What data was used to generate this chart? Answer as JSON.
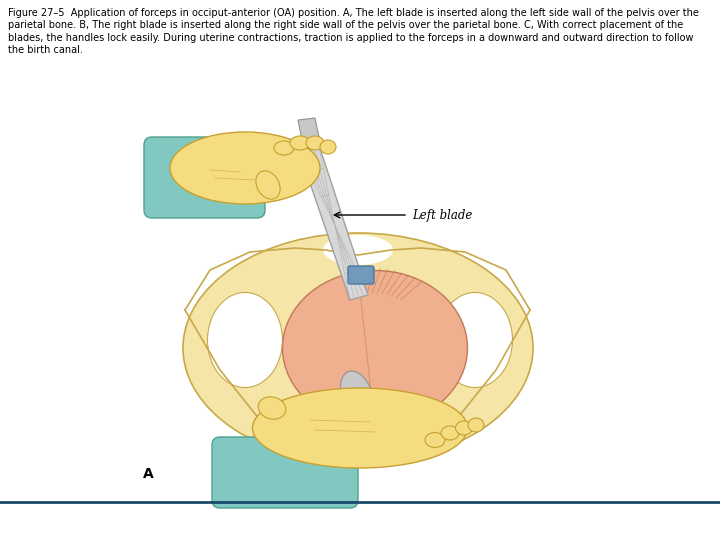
{
  "title_text": "Figure 27–5  Application of forceps in occiput-anterior (OA) position. A, The left blade is inserted along the left side wall of the pelvis over the\nparietal bone. B, The right blade is inserted along the right side wall of the pelvis over the parietal bone. C, With correct placement of the\nblades, the handles lock easily. During uterine contractions, traction is applied to the forceps in a downward and outward direction to follow\nthe birth canal.",
  "label_text": "Left blade",
  "sublabel": "A",
  "background_color": "#ffffff",
  "title_fontsize": 7.0,
  "label_fontsize": 8.5,
  "sublabel_fontsize": 10,
  "separator_color": "#1a4a6b",
  "fig_width": 7.2,
  "fig_height": 5.4,
  "dpi": 100,
  "pelvis_color": "#F5E6A8",
  "pelvis_edge": "#C8A848",
  "head_color": "#F0B090",
  "head_edge": "#C07858",
  "hand_color": "#F5DC80",
  "hand_edge": "#C8A030",
  "cuff_color": "#80C8C0",
  "cuff_edge": "#50A090",
  "blade_color": "#D8D8D8",
  "blade_edge": "#A0A0A0",
  "connector_color": "#7099BB",
  "arrow_color": "#000000"
}
